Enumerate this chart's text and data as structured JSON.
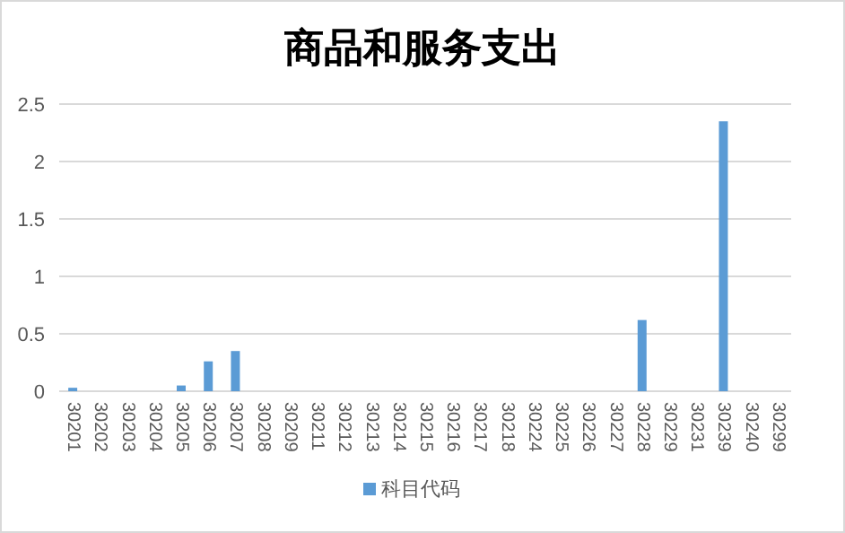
{
  "chart_data": {
    "type": "bar",
    "title": "商品和服务支出",
    "categories": [
      "30201",
      "30202",
      "30203",
      "30204",
      "30205",
      "30206",
      "30207",
      "30208",
      "30209",
      "30211",
      "30212",
      "30213",
      "30214",
      "30215",
      "30216",
      "30217",
      "30218",
      "30224",
      "30225",
      "30226",
      "30227",
      "30228",
      "30229",
      "30231",
      "30239",
      "30240",
      "30299"
    ],
    "series": [
      {
        "name": "科目代码",
        "color": "#5b9bd5",
        "values": [
          0.03,
          0,
          0,
          0,
          0.05,
          0.26,
          0.35,
          0,
          0,
          0,
          0,
          0,
          0,
          0,
          0,
          0,
          0,
          0,
          0,
          0,
          0,
          0.62,
          0,
          0,
          2.35,
          0,
          0
        ]
      }
    ],
    "ylim": [
      0,
      2.5
    ],
    "yticks": [
      0,
      0.5,
      1,
      1.5,
      2,
      2.5
    ],
    "grid": "y",
    "legend": "bottom"
  }
}
